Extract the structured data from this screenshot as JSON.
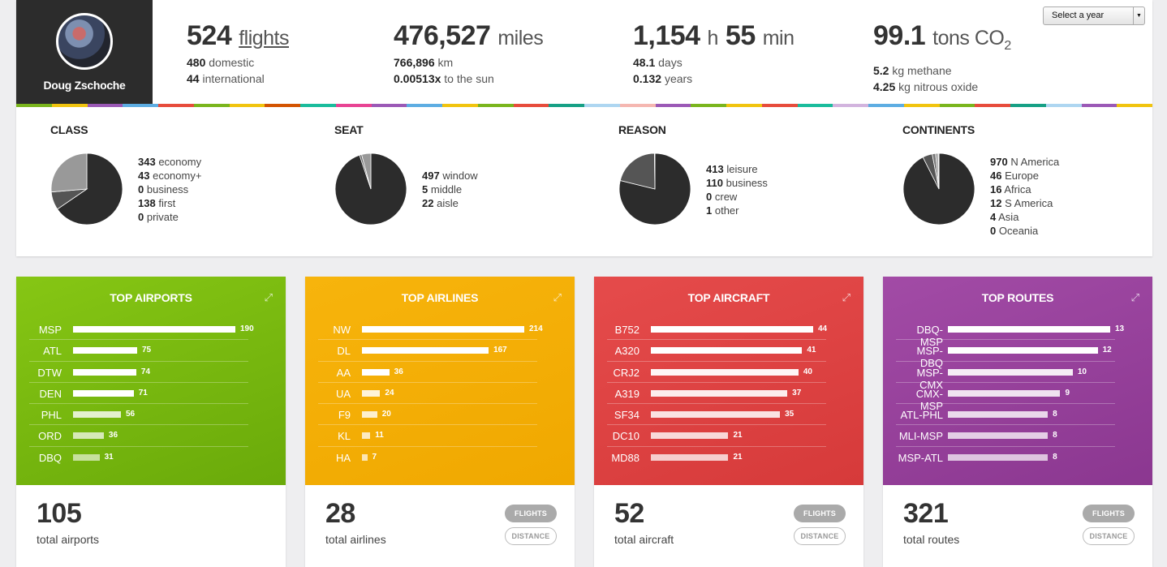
{
  "profile": {
    "name": "Doug Zschoche"
  },
  "stats": {
    "flights": {
      "value": "524",
      "unit": "flights",
      "line1_num": "480",
      "line1_lbl": "domestic",
      "line2_num": "44",
      "line2_lbl": "international"
    },
    "distance": {
      "value": "476,527",
      "unit": "miles",
      "line1_num": "766,896",
      "line1_lbl": "km",
      "line2_num": "0.00513x",
      "line2_lbl": "to the sun"
    },
    "time": {
      "hours": "1,154",
      "h_unit": "h",
      "minutes": "55",
      "m_unit": "min",
      "line1_num": "48.1",
      "line1_lbl": "days",
      "line2_num": "0.132",
      "line2_lbl": "years"
    },
    "co2": {
      "value": "99.1",
      "unit": "tons CO",
      "unit_sub": "2",
      "line1_num": "5.2",
      "line1_lbl": "kg methane",
      "line2_num": "4.25",
      "line2_lbl": "kg nitrous oxide"
    }
  },
  "year_select": {
    "label": "Select a year"
  },
  "stripe_colors": [
    "#7ab51d",
    "#f1c40f",
    "#9b59b6",
    "#5dade2",
    "#e74c3c",
    "#7ab51d",
    "#f1c40f",
    "#d35400",
    "#1abc9c",
    "#e84393",
    "#9b59b6",
    "#5dade2",
    "#f1c40f",
    "#7ab51d",
    "#e74c3c",
    "#16a085",
    "#aed6f1",
    "#f5b7b1",
    "#9b59b6",
    "#7ab51d",
    "#f1c40f",
    "#e74c3c",
    "#1abc9c",
    "#d2b4de",
    "#5dade2",
    "#f1c40f",
    "#7ab51d",
    "#e74c3c",
    "#16a085",
    "#aed6f1",
    "#9b59b6",
    "#f1c40f"
  ],
  "pies": [
    {
      "title": "CLASS",
      "legend_top": 39,
      "items": [
        {
          "n": 343,
          "label": "economy",
          "color": "#2c2c2c"
        },
        {
          "n": 43,
          "label": "economy+",
          "color": "#555555"
        },
        {
          "n": 0,
          "label": "business",
          "color": "#888888"
        },
        {
          "n": 138,
          "label": "first",
          "color": "#999999"
        },
        {
          "n": 0,
          "label": "private",
          "color": "#bbbbbb"
        }
      ]
    },
    {
      "title": "SEAT",
      "legend_top": 56,
      "items": [
        {
          "n": 497,
          "label": "window",
          "color": "#2c2c2c"
        },
        {
          "n": 5,
          "label": "middle",
          "color": "#666666"
        },
        {
          "n": 22,
          "label": "aisle",
          "color": "#999999"
        }
      ]
    },
    {
      "title": "REASON",
      "legend_top": 48,
      "items": [
        {
          "n": 413,
          "label": "leisure",
          "color": "#2c2c2c"
        },
        {
          "n": 110,
          "label": "business",
          "color": "#555555"
        },
        {
          "n": 0,
          "label": "crew",
          "color": "#888888"
        },
        {
          "n": 1,
          "label": "other",
          "color": "#aaaaaa"
        }
      ]
    },
    {
      "title": "CONTINENTS",
      "legend_top": 39,
      "items": [
        {
          "n": 970,
          "label": "N America",
          "color": "#2c2c2c"
        },
        {
          "n": 46,
          "label": "Europe",
          "color": "#555555"
        },
        {
          "n": 16,
          "label": "Africa",
          "color": "#777777"
        },
        {
          "n": 12,
          "label": "S America",
          "color": "#999999"
        },
        {
          "n": 4,
          "label": "Asia",
          "color": "#bbbbbb"
        },
        {
          "n": 0,
          "label": "Oceania",
          "color": "#dddddd"
        }
      ]
    }
  ],
  "tiles": [
    {
      "title": "TOP AIRPORTS",
      "grad": [
        "#86c614",
        "#6aaa0a"
      ],
      "bar_opacity": [
        1,
        1,
        1,
        1,
        0.8,
        0.7,
        0.6
      ],
      "rows": [
        {
          "label": "MSP",
          "value": 190
        },
        {
          "label": "ATL",
          "value": 75
        },
        {
          "label": "DTW",
          "value": 74
        },
        {
          "label": "DEN",
          "value": 71
        },
        {
          "label": "PHL",
          "value": 56
        },
        {
          "label": "ORD",
          "value": 36
        },
        {
          "label": "DBQ",
          "value": 31
        }
      ],
      "total": "105",
      "total_label": "total airports",
      "pills": null
    },
    {
      "title": "TOP AIRLINES",
      "grad": [
        "#f7b40c",
        "#f0a800"
      ],
      "bar_opacity": [
        1,
        1,
        1,
        0.85,
        0.8,
        0.75,
        0.7
      ],
      "rows": [
        {
          "label": "NW",
          "value": 214
        },
        {
          "label": "DL",
          "value": 167
        },
        {
          "label": "AA",
          "value": 36
        },
        {
          "label": "UA",
          "value": 24
        },
        {
          "label": "F9",
          "value": 20
        },
        {
          "label": "KL",
          "value": 11
        },
        {
          "label": "HA",
          "value": 7
        }
      ],
      "total": "28",
      "total_label": "total airlines",
      "pills": [
        "FLIGHTS",
        "DISTANCE"
      ]
    },
    {
      "title": "TOP AIRCRAFT",
      "grad": [
        "#e54b4b",
        "#d63a3a"
      ],
      "bar_opacity": [
        1,
        1,
        0.95,
        0.9,
        0.85,
        0.8,
        0.75
      ],
      "rows": [
        {
          "label": "B752",
          "value": 44
        },
        {
          "label": "A320",
          "value": 41
        },
        {
          "label": "CRJ2",
          "value": 40
        },
        {
          "label": "A319",
          "value": 37
        },
        {
          "label": "SF34",
          "value": 35
        },
        {
          "label": "DC10",
          "value": 21
        },
        {
          "label": "MD88",
          "value": 21
        }
      ],
      "total": "52",
      "total_label": "total aircraft",
      "pills": [
        "FLIGHTS",
        "DISTANCE"
      ]
    },
    {
      "title": "TOP ROUTES",
      "grad": [
        "#a24ba6",
        "#8b3790"
      ],
      "bar_opacity": [
        1,
        1,
        0.9,
        0.85,
        0.8,
        0.75,
        0.7
      ],
      "rows": [
        {
          "label": "DBQ-MSP",
          "value": 13
        },
        {
          "label": "MSP-DBQ",
          "value": 12
        },
        {
          "label": "MSP-CMX",
          "value": 10
        },
        {
          "label": "CMX-MSP",
          "value": 9
        },
        {
          "label": "ATL-PHL",
          "value": 8
        },
        {
          "label": "MLI-MSP",
          "value": 8
        },
        {
          "label": "MSP-ATL",
          "value": 8
        }
      ],
      "total": "321",
      "total_label": "total routes",
      "pills": [
        "FLIGHTS",
        "DISTANCE"
      ]
    }
  ]
}
